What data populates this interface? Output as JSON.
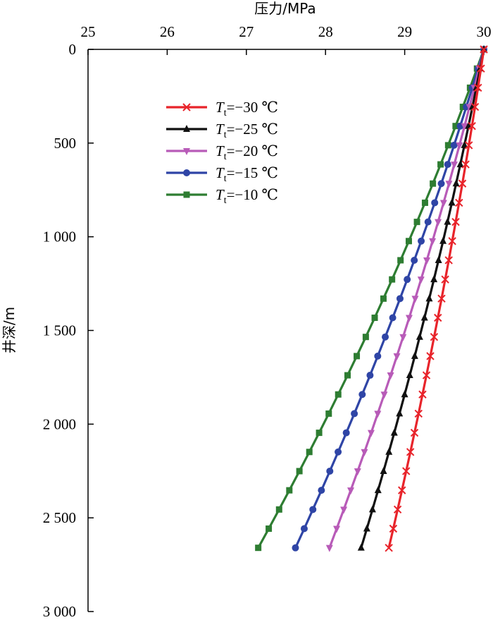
{
  "chart_data": {
    "type": "line",
    "xlabel": "压力/MPa",
    "ylabel": "井深/m",
    "xlim": [
      25,
      30
    ],
    "ylim": [
      0,
      3000
    ],
    "y_inverted": true,
    "x_axis_position": "top",
    "x_ticks": [
      "25",
      "26",
      "27",
      "28",
      "29",
      "30"
    ],
    "x_tick_values": [
      25,
      26,
      27,
      28,
      29,
      30
    ],
    "y_ticks": [
      "0",
      "500",
      "1 000",
      "1 500",
      "2 000",
      "2 500",
      "3 000"
    ],
    "y_tick_values": [
      0,
      500,
      1000,
      1500,
      2000,
      2500,
      3000
    ],
    "legend_position": "upper-left",
    "series": [
      {
        "name": "T_t=−30 ℃",
        "symbol": "T",
        "subscript": "t",
        "value_text": "=−30 ℃",
        "color": "#e8242b",
        "marker": "x",
        "depth": [
          0,
          2660
        ],
        "pressure": [
          30.0,
          28.8
        ]
      },
      {
        "name": "T_t=−25 ℃",
        "symbol": "T",
        "subscript": "t",
        "value_text": "=−25 ℃",
        "color": "#111111",
        "marker": "triangle-up",
        "depth": [
          0,
          2660
        ],
        "pressure": [
          30.0,
          28.45
        ]
      },
      {
        "name": "T_t=−20 ℃",
        "symbol": "T",
        "subscript": "t",
        "value_text": "=−20 ℃",
        "color": "#b85bb8",
        "marker": "triangle-down",
        "depth": [
          0,
          2660
        ],
        "pressure": [
          30.0,
          28.05
        ]
      },
      {
        "name": "T_t=−15 ℃",
        "symbol": "T",
        "subscript": "t",
        "value_text": "=−15 ℃",
        "color": "#2f45a6",
        "marker": "circle",
        "depth": [
          0,
          2660
        ],
        "pressure": [
          30.0,
          27.62
        ]
      },
      {
        "name": "T_t=−10 ℃",
        "symbol": "T",
        "subscript": "t",
        "value_text": "=−10 ℃",
        "color": "#2e7d32",
        "marker": "square",
        "depth": [
          0,
          2660
        ],
        "pressure": [
          30.0,
          27.15
        ]
      }
    ]
  }
}
